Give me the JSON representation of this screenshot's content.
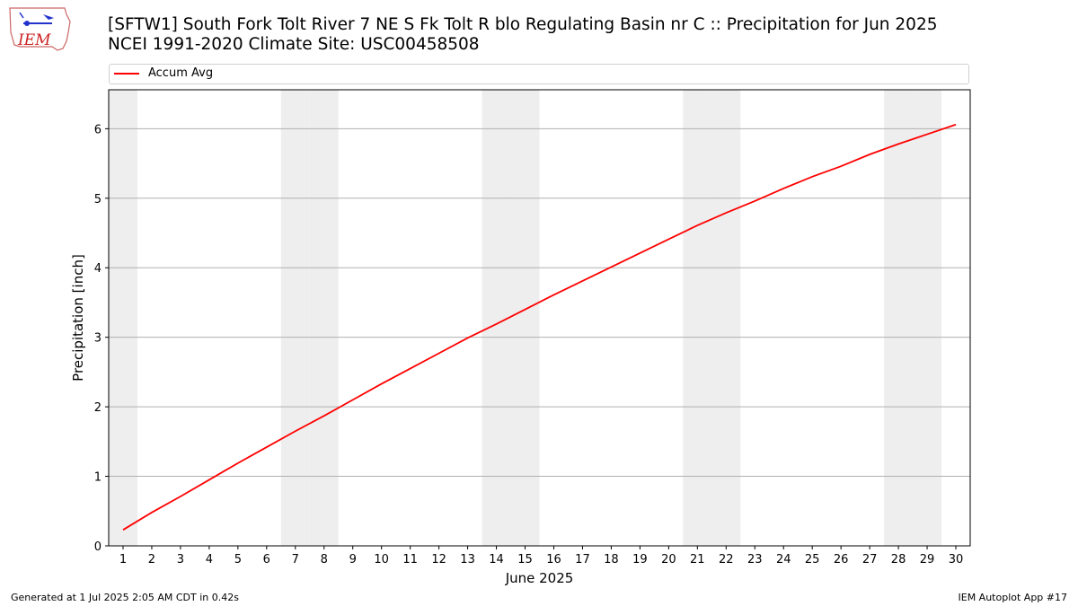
{
  "header": {
    "title_line1": "[SFTW1] South Fork Tolt River 7 NE S Fk Tolt R blo Regulating Basin nr C :: Precipitation for Jun 2025",
    "title_line2": "NCEI 1991-2020 Climate Site: USC00458508"
  },
  "logo": {
    "text": "IEM"
  },
  "footer": {
    "left": "Generated at 1 Jul 2025 2:05 AM CDT in 0.42s",
    "right": "IEM Autoplot App #17"
  },
  "colors": {
    "line": "#ff0000",
    "weekend": "#eeeeee",
    "grid": "#b0b0b0",
    "logo": "#cc2222"
  },
  "chart_data": {
    "type": "line",
    "title": "[SFTW1] South Fork Tolt River 7 NE S Fk Tolt R blo Regulating Basin nr C :: Precipitation for Jun 2025",
    "xlabel": "June 2025",
    "ylabel": "Precipitation [inch]",
    "xlim": [
      0.5,
      30.5
    ],
    "ylim": [
      0,
      6.56
    ],
    "yticks": [
      0,
      1,
      2,
      3,
      4,
      5,
      6
    ],
    "x": [
      1,
      2,
      3,
      4,
      5,
      6,
      7,
      8,
      9,
      10,
      11,
      12,
      13,
      14,
      15,
      16,
      17,
      18,
      19,
      20,
      21,
      22,
      23,
      24,
      25,
      26,
      27,
      28,
      29,
      30
    ],
    "xtick_labels": [
      "1",
      "2",
      "3",
      "4",
      "5",
      "6",
      "7",
      "8",
      "9",
      "10",
      "11",
      "12",
      "13",
      "14",
      "15",
      "16",
      "17",
      "18",
      "19",
      "20",
      "21",
      "22",
      "23",
      "24",
      "25",
      "26",
      "27",
      "28",
      "29",
      "30"
    ],
    "weekend_days": [
      1,
      7,
      8,
      14,
      15,
      21,
      22,
      28,
      29
    ],
    "grid": "y",
    "legend_position": "top",
    "series": [
      {
        "name": "Accum Avg",
        "color": "#ff0000",
        "values": [
          0.23,
          0.48,
          0.71,
          0.95,
          1.19,
          1.42,
          1.65,
          1.87,
          2.1,
          2.33,
          2.55,
          2.77,
          2.99,
          3.19,
          3.4,
          3.61,
          3.81,
          4.01,
          4.21,
          4.41,
          4.61,
          4.79,
          4.96,
          5.14,
          5.31,
          5.46,
          5.63,
          5.78,
          5.92,
          6.06
        ]
      }
    ]
  }
}
